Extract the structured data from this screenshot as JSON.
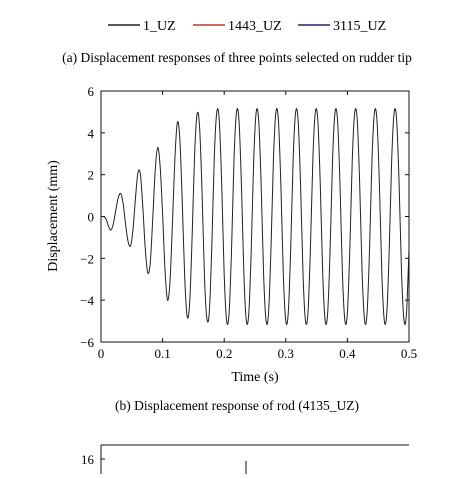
{
  "captions": {
    "a": "(a) Displacement responses of three points selected on rudder tip",
    "b": "(b) Displacement response of rod (4135_UZ)"
  },
  "colors": {
    "axis": "#111111",
    "series_1": "#222222",
    "series_2": "#c0392b",
    "series_3": "#1f2a6b"
  },
  "chart_data": [
    {
      "type": "line",
      "legend_position": "top",
      "series": [
        {
          "name": "1_UZ",
          "color": "#222222"
        },
        {
          "name": "1443_UZ",
          "color": "#c0392b"
        },
        {
          "name": "3115_UZ",
          "color": "#1f2a6b"
        }
      ]
    },
    {
      "type": "line",
      "xlabel": "Time (s)",
      "ylabel": "Displacement (mm)",
      "xlim": [
        0,
        0.5
      ],
      "ylim": [
        -6,
        6
      ],
      "xticks": [
        0,
        0.1,
        0.2,
        0.3,
        0.4,
        0.5
      ],
      "xtick_labels": [
        "0",
        "0.1",
        "0.2",
        "0.3",
        "0.4",
        "0.5"
      ],
      "yticks": [
        -6,
        -4,
        -2,
        0,
        2,
        4,
        6
      ],
      "ytick_labels": [
        "−6",
        "−4",
        "−2",
        "0",
        "2",
        "4",
        "6"
      ],
      "grid": false,
      "series": [
        {
          "name": "4135_UZ",
          "color": "#222222",
          "x": [
            0,
            0.004,
            0.008,
            0.012,
            0.016,
            0.02,
            0.024,
            0.028,
            0.032,
            0.036,
            0.04,
            0.044,
            0.048,
            0.052,
            0.056,
            0.06,
            0.064,
            0.068,
            0.072,
            0.076,
            0.08,
            0.084,
            0.088,
            0.092,
            0.096,
            0.1,
            0.104,
            0.108,
            0.112,
            0.116,
            0.12,
            0.124,
            0.128,
            0.132,
            0.136,
            0.14,
            0.144,
            0.148,
            0.152,
            0.156,
            0.16,
            0.164,
            0.168,
            0.172,
            0.176,
            0.18,
            0.184,
            0.188,
            0.192,
            0.196,
            0.2,
            0.204,
            0.208,
            0.212,
            0.216,
            0.22,
            0.224,
            0.228,
            0.232,
            0.236,
            0.24,
            0.244,
            0.248,
            0.252,
            0.256,
            0.26,
            0.264,
            0.268,
            0.272,
            0.276,
            0.28,
            0.284,
            0.288,
            0.292,
            0.296,
            0.3,
            0.304,
            0.308,
            0.312,
            0.316,
            0.32,
            0.324,
            0.328,
            0.332,
            0.336,
            0.34,
            0.344,
            0.348,
            0.352,
            0.356,
            0.36,
            0.364,
            0.368,
            0.372,
            0.376,
            0.38,
            0.384,
            0.388,
            0.392,
            0.396,
            0.4,
            0.404,
            0.408,
            0.412,
            0.416,
            0.42,
            0.424,
            0.428,
            0.432,
            0.436,
            0.44,
            0.444,
            0.448,
            0.452,
            0.456,
            0.46,
            0.464,
            0.468,
            0.472,
            0.476,
            0.48,
            0.484,
            0.488,
            0.492,
            0.496,
            0.5
          ],
          "y": [
            0,
            0,
            -0.1,
            -0.45,
            -0.65,
            -0.35,
            0.3,
            0.9,
            1.1,
            0.6,
            -0.4,
            -1.2,
            -1.4,
            -0.6,
            0.9,
            2.1,
            2.0,
            0.4,
            -1.6,
            -2.7,
            -2.2,
            -0.1,
            2.2,
            3.3,
            2.4,
            0.1,
            -2.6,
            -4.0,
            -3.1,
            -0.3,
            2.8,
            4.5,
            3.7,
            0.6,
            -3.0,
            -4.8,
            -4.1,
            -0.9,
            3.0,
            4.9,
            4.3,
            1.2,
            -2.9,
            -4.9,
            -4.5,
            -1.3,
            2.9,
            5.0,
            4.6,
            1.5,
            -2.8,
            -5.0,
            -4.6,
            -1.5,
            2.8,
            5.0,
            4.6,
            1.5,
            -2.8,
            -5.0,
            -4.6,
            -1.5,
            2.8,
            5.0,
            4.6,
            1.5,
            -2.8,
            -5.0,
            -4.6,
            -1.5,
            2.8,
            5.0,
            4.6,
            1.5,
            -2.8,
            -5.0,
            -4.6,
            -1.5,
            2.8,
            5.0,
            4.6,
            1.5,
            -2.8,
            -5.0,
            -4.6,
            -1.5,
            2.8,
            5.0,
            4.6,
            1.5,
            -2.8,
            -5.0,
            -4.6,
            -1.5,
            2.8,
            5.0,
            4.6,
            1.5,
            -2.8,
            -5.0,
            -4.6,
            -1.5,
            2.8,
            5.0,
            4.6,
            1.5,
            -2.8,
            -5.0,
            -4.6,
            -1.5,
            2.8,
            5.0,
            4.6,
            1.5,
            -2.8,
            -5.0,
            -4.6,
            -1.5,
            2.8,
            5.0,
            4.6,
            1.5,
            -2.8,
            -5.0,
            -4.6,
            -1.5
          ]
        }
      ]
    },
    {
      "type": "line",
      "yticks": [
        16
      ],
      "ytick_labels": [
        "16"
      ],
      "note": "partially visible third panel"
    }
  ]
}
